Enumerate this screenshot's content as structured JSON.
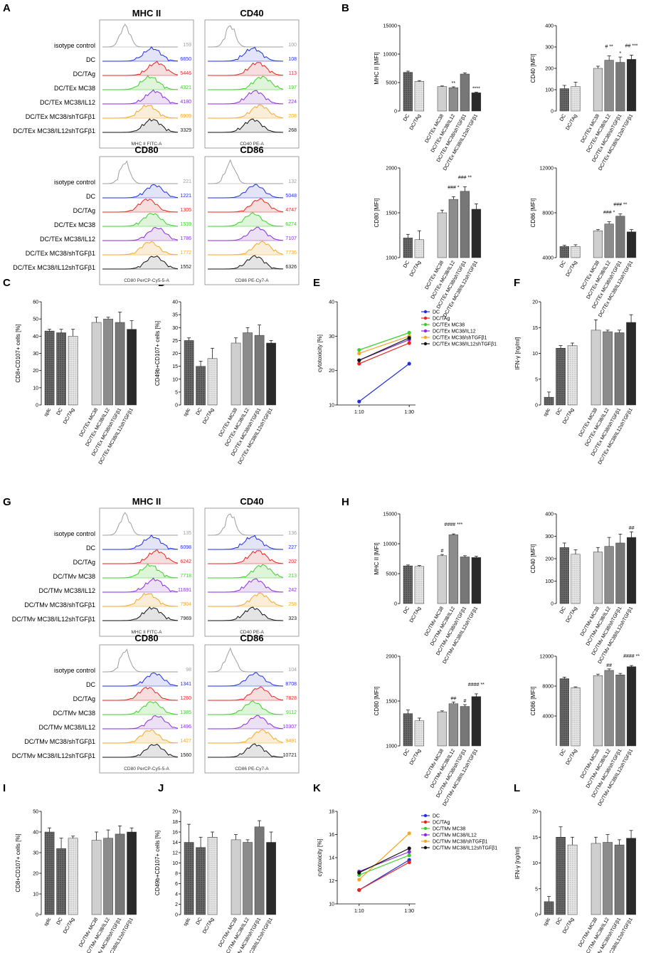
{
  "colors": {
    "blue": "#1f2ee0",
    "red": "#e8231c",
    "green": "#3ccf2a",
    "purple": "#8a2be2",
    "orange": "#f5a623",
    "black": "#111111",
    "gray": "#9e9e9e",
    "bar_dark": "#555555",
    "bar_mid": "#8c8c8c",
    "bar_light": "#cfcfcf",
    "bar_black": "#2a2a2a"
  },
  "panel_letters": [
    "A",
    "B",
    "C",
    "D",
    "E",
    "F",
    "G",
    "H",
    "I",
    "J",
    "K",
    "L"
  ],
  "flow_top": {
    "rows": [
      "isotype control",
      "DC",
      "DC/TAg",
      "DC/TEx MC38",
      "DC/TEx MC38/IL12",
      "DC/TEx MC38/shTGFβ1",
      "DC/TEx MC38/IL12shTGFβ1"
    ],
    "panels": [
      {
        "title": "MHC II",
        "axis": "MHC II FITC-A",
        "values": [
          "159",
          "6650",
          "5446",
          "4321",
          "4180",
          "6909",
          "3329"
        ]
      },
      {
        "title": "CD40",
        "axis": "CD40 PE-A",
        "values": [
          "100",
          "108",
          "113",
          "197",
          "224",
          "208",
          "268"
        ]
      },
      {
        "title": "CD80",
        "axis": "CD80 PerCP-Cy5-5-A",
        "values": [
          "221",
          "1221",
          "1305",
          "1539",
          "1786",
          "1772",
          "1552"
        ]
      },
      {
        "title": "CD86",
        "axis": "CD86 PE-Cy7-A",
        "values": [
          "132",
          "5048",
          "4747",
          "6274",
          "7107",
          "7736",
          "6326"
        ]
      }
    ]
  },
  "flow_bottom": {
    "rows": [
      "isotype control",
      "DC",
      "DC/TAg",
      "DC/TMv MC38",
      "DC/TMv MC38/IL12",
      "DC/TMv MC38/shTGFβ1",
      "DC/TMv MC38/IL12shTGFβ1"
    ],
    "panels": [
      {
        "title": "MHC II",
        "axis": "MHC II FITC-A",
        "values": [
          "135",
          "6098",
          "6242",
          "7718",
          "11691",
          "7904",
          "7969"
        ]
      },
      {
        "title": "CD40",
        "axis": "CD40 PE-A",
        "values": [
          "136",
          "227",
          "202",
          "213",
          "242",
          "258",
          "323"
        ]
      },
      {
        "title": "CD80",
        "axis": "CD80 PerCP-Cy5-5-A",
        "values": [
          "98",
          "1341",
          "1260",
          "1385",
          "1496",
          "1427",
          "1560"
        ]
      },
      {
        "title": "CD86",
        "axis": "CD86 PE-Cy7-A",
        "values": [
          "104",
          "8708",
          "7828",
          "9112",
          "10307",
          "9491",
          "10721"
        ]
      }
    ]
  },
  "chart_data": [
    {
      "panel": "B",
      "type": "bar",
      "ylabel": "MHC II [MFI]",
      "ylim": [
        0,
        15000
      ],
      "yticks": [
        "0",
        "5000",
        "10000",
        "15000"
      ],
      "categories": [
        "DC",
        "DC/TAg",
        "DC/TEx MC38",
        "DC/TEx MC38/IL12",
        "DC/TEx MC38/shTGFβ1",
        "DC/TEx MC38/IL12shTGFβ1"
      ],
      "values": [
        6800,
        5200,
        4300,
        4100,
        6500,
        3200
      ],
      "errors": [
        200,
        150,
        100,
        150,
        200,
        100
      ],
      "annotations": [
        "",
        "",
        "",
        "**",
        "",
        "****"
      ]
    },
    {
      "panel": "B",
      "type": "bar",
      "ylabel": "CD40 [MFI]",
      "ylim": [
        0,
        400
      ],
      "yticks": [
        "0",
        "100",
        "200",
        "300",
        "400"
      ],
      "categories": [
        "DC",
        "DC/TAg",
        "DC/TEx MC38",
        "DC/TEx MC38/IL12",
        "DC/TEx MC38/shTGFβ1",
        "DC/TEx MC38/IL12shTGFβ1"
      ],
      "values": [
        105,
        115,
        200,
        238,
        228,
        242
      ],
      "errors": [
        15,
        20,
        10,
        20,
        25,
        20
      ],
      "annotations": [
        "",
        "",
        "",
        "# **",
        "*",
        "## ***"
      ]
    },
    {
      "panel": "B",
      "type": "bar",
      "ylabel": "CD80 [MFI]",
      "ylim": [
        1000,
        2000
      ],
      "yticks": [
        "1000",
        "1500",
        "2000"
      ],
      "categories": [
        "DC",
        "DC/TAg",
        "DC/TEx MC38",
        "DC/TEx MC38/IL12",
        "DC/TEx MC38/shTGFβ1",
        "DC/TEx MC38/IL12shTGFβ1"
      ],
      "values": [
        1220,
        1200,
        1500,
        1650,
        1740,
        1540
      ],
      "errors": [
        40,
        100,
        30,
        30,
        50,
        60
      ],
      "annotations": [
        "",
        "",
        "",
        "### *",
        "### **",
        ""
      ]
    },
    {
      "panel": "B",
      "type": "bar",
      "ylabel": "CD86 [MFI]",
      "ylim": [
        4000,
        12000
      ],
      "yticks": [
        "4000",
        "8000",
        "12000"
      ],
      "categories": [
        "DC",
        "DC/TAg",
        "DC/TEx MC38",
        "DC/TEx MC38/IL12",
        "DC/TEx MC38/shTGFβ1",
        "DC/TEx MC38/IL12shTGFβ1"
      ],
      "values": [
        5000,
        5000,
        6400,
        7000,
        7700,
        6300
      ],
      "errors": [
        100,
        150,
        100,
        200,
        200,
        200
      ],
      "annotations": [
        "",
        "",
        "",
        "### *",
        "### **",
        ""
      ]
    },
    {
      "panel": "C",
      "type": "bar",
      "ylabel": "CD8+CD107+ cells [%]",
      "ylim": [
        0,
        60
      ],
      "yticks": [
        "0",
        "10",
        "20",
        "30",
        "40",
        "50",
        "60"
      ],
      "categories": [
        "splc",
        "DC",
        "DC/TAg",
        "DC/TEx MC38",
        "DC/TEx MC38/IL12",
        "DC/TEx MC38/shTGFβ1",
        "DC/TEx MC38/IL12shTGFβ1"
      ],
      "values": [
        43,
        42,
        40,
        48,
        50,
        48,
        44
      ],
      "errors": [
        1,
        2,
        4,
        3,
        1,
        6,
        5
      ]
    },
    {
      "panel": "D",
      "type": "bar",
      "ylabel": "CD49b+CD107+ cells [%]",
      "ylim": [
        0,
        40
      ],
      "yticks": [
        "0",
        "5",
        "10",
        "15",
        "20",
        "25",
        "30",
        "35",
        "40"
      ],
      "categories": [
        "splc",
        "DC",
        "DC/TAg",
        "DC/TEx MC38",
        "DC/TEx MC38/IL12",
        "DC/TEx MC38/shTGFβ1",
        "DC/TEx MC38/IL12shTGFβ1"
      ],
      "values": [
        25,
        15,
        18,
        24,
        28,
        27,
        24
      ],
      "errors": [
        1,
        2,
        4,
        2,
        2,
        4,
        1
      ]
    },
    {
      "panel": "E",
      "type": "line",
      "ylabel": "cytotoxicity [%]",
      "ylim": [
        10,
        40
      ],
      "yticks": [
        "10",
        "20",
        "30",
        "40"
      ],
      "x": [
        "1:10",
        "1:30"
      ],
      "series": [
        {
          "name": "DC",
          "values": [
            11,
            22
          ]
        },
        {
          "name": "DC/TAg",
          "values": [
            22,
            28
          ]
        },
        {
          "name": "DC/TEx MC38",
          "values": [
            26,
            31
          ]
        },
        {
          "name": "DC/TEx MC38/IL12",
          "values": [
            23,
            29
          ]
        },
        {
          "name": "DC/TEx MC38/shTGFβ1",
          "values": [
            25,
            30
          ]
        },
        {
          "name": "DC/TEx MC38/IL12shTGFβ1",
          "values": [
            23,
            29.5
          ]
        }
      ]
    },
    {
      "panel": "F",
      "type": "bar",
      "ylabel": "IFN-γ [ng/ml]",
      "ylim": [
        0,
        20
      ],
      "yticks": [
        "0",
        "5",
        "10",
        "15",
        "20"
      ],
      "categories": [
        "splc",
        "DC",
        "DC/TAg",
        "DC/TEx MC38",
        "DC/TEx MC38/IL12",
        "DC/TEx MC38/shTGFβ1",
        "DC/TEx MC38/IL12shTGFβ1"
      ],
      "values": [
        1.5,
        11,
        11.5,
        14.5,
        14.2,
        14,
        16
      ],
      "errors": [
        1,
        0.5,
        0.5,
        2,
        0.3,
        0.5,
        1.5
      ]
    },
    {
      "panel": "H",
      "type": "bar",
      "ylabel": "MHC II [MFI]",
      "ylim": [
        0,
        15000
      ],
      "yticks": [
        "0",
        "5000",
        "10000",
        "15000"
      ],
      "categories": [
        "DC",
        "DC/TAg",
        "DC/TMv MC38",
        "DC/TMv MC38/IL12",
        "DC/TMv MC38/shTGFβ1",
        "DC/TMv MC38/IL12shTGFβ1"
      ],
      "values": [
        6300,
        6200,
        8000,
        11500,
        7800,
        7700
      ],
      "errors": [
        150,
        150,
        200,
        150,
        200,
        200
      ],
      "annotations": [
        "",
        "",
        "#",
        "#### ***",
        "",
        ""
      ]
    },
    {
      "panel": "H",
      "type": "bar",
      "ylabel": "CD40 [MFI]",
      "ylim": [
        0,
        400
      ],
      "yticks": [
        "0",
        "100",
        "200",
        "300",
        "400"
      ],
      "categories": [
        "DC",
        "DC/TAg",
        "DC/TMv MC38",
        "DC/TMv MC38/IL12",
        "DC/TMv MC38/shTGFβ1",
        "DC/TMv MC38/IL12shTGFβ1"
      ],
      "values": [
        250,
        220,
        230,
        255,
        270,
        295
      ],
      "errors": [
        20,
        20,
        20,
        40,
        40,
        25
      ],
      "annotations": [
        "",
        "",
        "",
        "",
        "",
        "##"
      ]
    },
    {
      "panel": "H",
      "type": "bar",
      "ylabel": "CD80 [MFI]",
      "ylim": [
        1000,
        2000
      ],
      "yticks": [
        "1000",
        "1500",
        "2000"
      ],
      "categories": [
        "DC",
        "DC/TAg",
        "DC/TMv MC38",
        "DC/TMv MC38/IL12",
        "DC/TMv MC38/shTGFβ1",
        "DC/TMv MC38/IL12shTGFβ1"
      ],
      "values": [
        1360,
        1280,
        1380,
        1470,
        1440,
        1550
      ],
      "errors": [
        40,
        30,
        10,
        20,
        20,
        30
      ],
      "annotations": [
        "",
        "",
        "",
        "##",
        "#",
        "#### **"
      ]
    },
    {
      "panel": "H",
      "type": "bar",
      "ylabel": "CD86 [MFI]",
      "ylim": [
        0,
        12000
      ],
      "yticks": [
        "4000",
        "8000",
        "12000"
      ],
      "categories": [
        "DC",
        "DC/TAg",
        "DC/TMv MC38",
        "DC/TMv MC38/IL12",
        "DC/TMv MC38/shTGFβ1",
        "DC/TMv MC38/IL12shTGFβ1"
      ],
      "values": [
        9000,
        7800,
        9400,
        10100,
        9500,
        10600
      ],
      "errors": [
        200,
        100,
        200,
        200,
        200,
        150
      ],
      "annotations": [
        "",
        "",
        "",
        "##",
        "",
        "#### **"
      ]
    },
    {
      "panel": "I",
      "type": "bar",
      "ylabel": "CD8+CD107+ cells [%]",
      "ylim": [
        0,
        50
      ],
      "yticks": [
        "0",
        "10",
        "20",
        "30",
        "40",
        "50"
      ],
      "categories": [
        "splc",
        "DC",
        "DC/TAg",
        "DC/TMv MC38",
        "DC/TMv MC38/IL12",
        "DC/TMv MC38/shTGFβ1",
        "DC/TMv MC38/IL12shTGFβ1"
      ],
      "values": [
        40,
        32,
        37,
        36,
        37,
        39,
        40
      ],
      "errors": [
        2,
        5,
        1,
        4,
        4,
        4,
        2
      ]
    },
    {
      "panel": "J",
      "type": "bar",
      "ylabel": "CD49b+CD107+ cells [%]",
      "ylim": [
        0,
        20
      ],
      "yticks": [
        "0",
        "2",
        "4",
        "6",
        "8",
        "10",
        "12",
        "14",
        "16",
        "18",
        "20"
      ],
      "categories": [
        "splc",
        "DC",
        "DC/TAg",
        "DC/TMv MC38",
        "DC/TMv MC38/IL12",
        "DC/TMv MC38/shTGFβ1",
        "DC/TMv MC38/IL12shTGFβ1"
      ],
      "values": [
        14,
        13,
        15,
        14.5,
        14,
        17,
        14
      ],
      "errors": [
        3.5,
        2,
        1,
        1,
        0.5,
        1.2,
        2
      ]
    },
    {
      "panel": "K",
      "type": "line",
      "ylabel": "cytotoxicity [%]",
      "ylim": [
        10,
        18
      ],
      "yticks": [
        "10",
        "12",
        "14",
        "16",
        "18"
      ],
      "x": [
        "1:10",
        "1:30"
      ],
      "series": [
        {
          "name": "DC",
          "values": [
            11.2,
            13.8
          ]
        },
        {
          "name": "DC/TAg",
          "values": [
            11.2,
            13.6
          ]
        },
        {
          "name": "DC/TMv MC38",
          "values": [
            12.5,
            14.2
          ]
        },
        {
          "name": "DC/TMv MC38/IL12",
          "values": [
            12.8,
            14.5
          ]
        },
        {
          "name": "DC/TMv MC38/shTGFβ1",
          "values": [
            12.1,
            16.1
          ]
        },
        {
          "name": "DC/TMv MC38/IL12shTGFβ1",
          "values": [
            12.7,
            14.8
          ]
        }
      ]
    },
    {
      "panel": "L",
      "type": "bar",
      "ylabel": "IFN-γ [ng/ml]",
      "ylim": [
        0,
        20
      ],
      "yticks": [
        "0",
        "5",
        "10",
        "15",
        "20"
      ],
      "categories": [
        "splc",
        "DC",
        "DC/TAg",
        "DC/TMv MC38",
        "DC/TMv MC38/IL12",
        "DC/TMv MC38/shTGFβ1",
        "DC/TMv MC38/IL12shTGFβ1"
      ],
      "values": [
        2.5,
        15,
        13.5,
        13.8,
        14,
        13.5,
        14.8
      ],
      "errors": [
        1,
        2,
        1.5,
        1.2,
        1.5,
        1,
        1.5
      ]
    }
  ]
}
